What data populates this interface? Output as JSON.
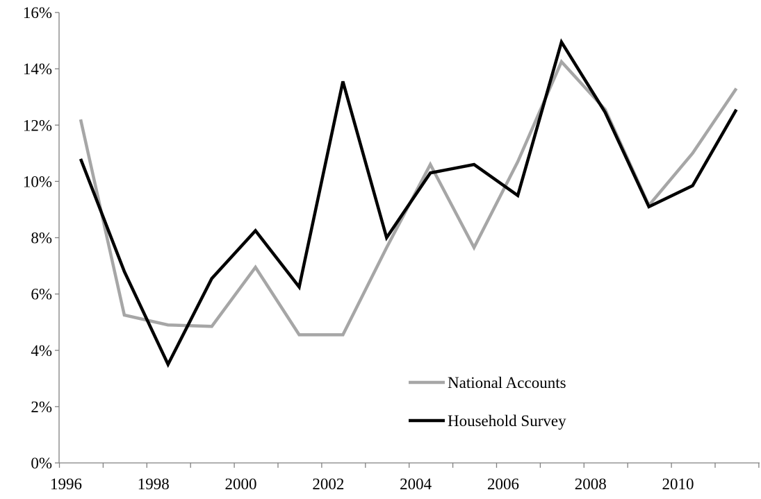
{
  "chart_data": {
    "type": "line",
    "title": "",
    "xlabel": "",
    "ylabel": "",
    "x": [
      1996,
      1997,
      1998,
      1999,
      2000,
      2001,
      2002,
      2003,
      2004,
      2005,
      2006,
      2007,
      2008,
      2009,
      2010,
      2011
    ],
    "series": [
      {
        "name": "National Accounts",
        "color": "#a6a6a6",
        "values": [
          12.2,
          5.25,
          4.9,
          4.85,
          6.95,
          4.55,
          4.55,
          7.65,
          10.6,
          7.65,
          10.7,
          14.25,
          12.55,
          9.15,
          11.0,
          13.3
        ]
      },
      {
        "name": "Household Survey",
        "color": "#000000",
        "values": [
          10.8,
          6.8,
          3.5,
          6.55,
          8.25,
          6.25,
          13.55,
          8.0,
          10.3,
          10.6,
          9.5,
          14.95,
          12.45,
          9.1,
          9.85,
          12.55
        ]
      }
    ],
    "x_tick_labels": [
      "1996",
      "1998",
      "2000",
      "2002",
      "2004",
      "2006",
      "2008",
      "2010"
    ],
    "y_ticks": [
      0,
      2,
      4,
      6,
      8,
      10,
      12,
      14,
      16
    ],
    "y_tick_labels": [
      "0%",
      "2%",
      "4%",
      "6%",
      "8%",
      "10%",
      "12%",
      "14%",
      "16%"
    ],
    "ylim": [
      0,
      16
    ],
    "xlim": [
      1996,
      2011
    ],
    "grid": false,
    "legend_position": "bottom-right"
  }
}
